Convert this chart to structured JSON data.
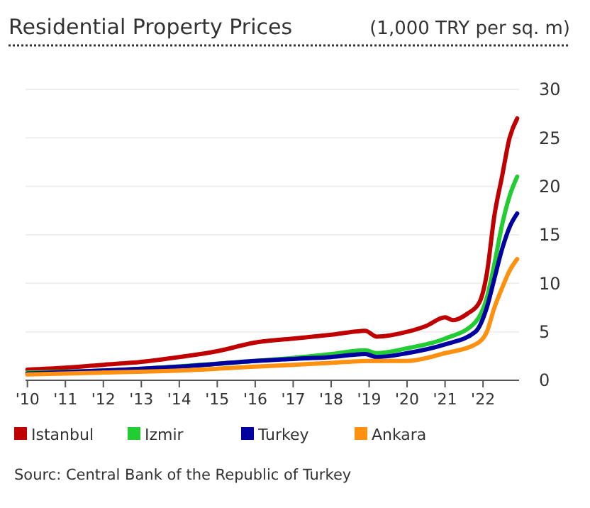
{
  "chart_data": {
    "type": "line",
    "title": "Residential Property Prices",
    "subtitle": "(1,000 TRY per sq. m)",
    "annotations": [
      "Sourc: Central Bank of the Republic of Turkey"
    ],
    "xlim": [
      2009.95,
      2022.95
    ],
    "ylim": [
      0,
      30
    ],
    "xticks": [
      {
        "value": 2010,
        "label": "'10"
      },
      {
        "value": 2011,
        "label": "'11"
      },
      {
        "value": 2012,
        "label": "'12"
      },
      {
        "value": 2013,
        "label": "'13"
      },
      {
        "value": 2014,
        "label": "'14"
      },
      {
        "value": 2015,
        "label": "'15"
      },
      {
        "value": 2016,
        "label": "'16"
      },
      {
        "value": 2017,
        "label": "'17"
      },
      {
        "value": 2018,
        "label": "'18"
      },
      {
        "value": 2019,
        "label": "'19"
      },
      {
        "value": 2020,
        "label": "'20"
      },
      {
        "value": 2021,
        "label": "'21"
      },
      {
        "value": 2022,
        "label": "'22"
      }
    ],
    "yticks": [
      0,
      5,
      10,
      15,
      20,
      25,
      30
    ],
    "grid": "y",
    "legend": "bottom",
    "series": [
      {
        "name": "Istanbul",
        "color": "#c00000",
        "x": [
          2010,
          2011,
          2012,
          2013,
          2014,
          2015,
          2016,
          2017,
          2018,
          2018.9,
          2019.2,
          2020,
          2020.5,
          2021,
          2021.2,
          2021.6,
          2021.9,
          2022.1,
          2022.3,
          2022.5,
          2022.7,
          2022.9
        ],
        "values": [
          1.1,
          1.3,
          1.6,
          1.9,
          2.4,
          3.0,
          3.9,
          4.3,
          4.7,
          5.1,
          4.5,
          5.0,
          5.6,
          6.5,
          6.2,
          6.9,
          8,
          11,
          17,
          21,
          25,
          27
        ]
      },
      {
        "name": "Izmir",
        "color": "#22cc33",
        "x": [
          2010,
          2012,
          2016,
          2017,
          2018,
          2018.9,
          2019.2,
          2020,
          2021,
          2021.8,
          2022.1,
          2022.3,
          2022.5,
          2022.7,
          2022.9
        ],
        "values": [
          0.8,
          1.0,
          2.0,
          2.3,
          2.7,
          3.1,
          2.8,
          3.3,
          4.3,
          6,
          8.5,
          12,
          16,
          19,
          21
        ]
      },
      {
        "name": "Turkey",
        "color": "#0000a0",
        "x": [
          2010,
          2012,
          2014,
          2016,
          2017,
          2018,
          2018.9,
          2019.2,
          2020,
          2021,
          2021.8,
          2022.1,
          2022.3,
          2022.5,
          2022.7,
          2022.9
        ],
        "values": [
          0.7,
          1.0,
          1.4,
          2.0,
          2.2,
          2.4,
          2.7,
          2.4,
          2.8,
          3.7,
          5,
          7.5,
          10.5,
          13.5,
          15.8,
          17.2
        ]
      },
      {
        "name": "Ankara",
        "color": "#ff9010",
        "x": [
          2010,
          2012,
          2014,
          2016,
          2017,
          2018,
          2019,
          2020,
          2021,
          2021.8,
          2022.1,
          2022.3,
          2022.5,
          2022.7,
          2022.9
        ],
        "values": [
          0.6,
          0.8,
          1.0,
          1.4,
          1.6,
          1.8,
          2.0,
          2.0,
          2.8,
          3.7,
          5,
          7.5,
          9.5,
          11.3,
          12.5
        ]
      }
    ]
  }
}
